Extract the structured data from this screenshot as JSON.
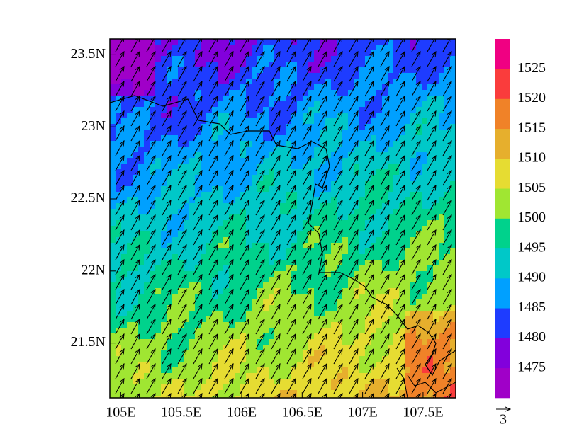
{
  "map": {
    "xlim": [
      104.91,
      107.77
    ],
    "ylim": [
      21.12,
      23.61
    ],
    "xticks": [
      {
        "value": 105,
        "label": "105E"
      },
      {
        "value": 105.5,
        "label": "105.5E"
      },
      {
        "value": 106,
        "label": "106E"
      },
      {
        "value": 106.5,
        "label": "106.5E"
      },
      {
        "value": 107,
        "label": "107E"
      },
      {
        "value": 107.5,
        "label": "107.5E"
      }
    ],
    "yticks": [
      {
        "value": 21.5,
        "label": "21.5N"
      },
      {
        "value": 22,
        "label": "22N"
      },
      {
        "value": 22.5,
        "label": "22.5N"
      },
      {
        "value": 23,
        "label": "23N"
      },
      {
        "value": 23.5,
        "label": "23.5N"
      }
    ],
    "colorbar": {
      "lim": [
        1470,
        1530
      ],
      "ticks": [
        1475,
        1480,
        1485,
        1490,
        1495,
        1500,
        1505,
        1510,
        1515,
        1520,
        1525
      ],
      "colors": [
        "#a000c8",
        "#8200dc",
        "#1e3cff",
        "#00a0ff",
        "#00c8c8",
        "#00d28c",
        "#a0e632",
        "#e6dc32",
        "#e6af2d",
        "#f08228",
        "#fa3c3c",
        "#f00082"
      ]
    },
    "reference_vector": 3
  }
}
